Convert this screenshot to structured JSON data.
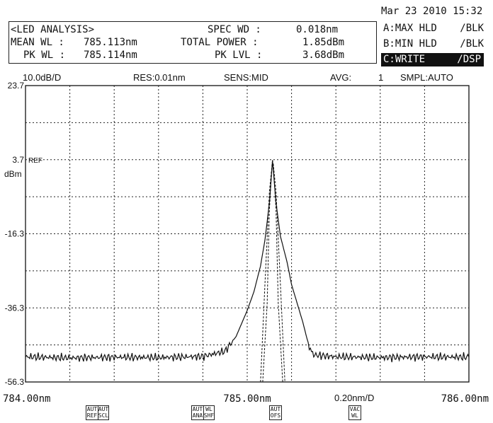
{
  "header": {
    "datetime": "Mar 23 2010 15:32"
  },
  "analysis": {
    "title": "<LED ANALYSIS>",
    "mean_wl_label": "MEAN WL :",
    "mean_wl_value": "785.113nm",
    "pk_wl_label": "PK WL :",
    "pk_wl_value": "785.114nm",
    "spec_wd_label": "SPEC WD :",
    "spec_wd_value": "0.018nm",
    "total_power_label": "TOTAL POWER :",
    "total_power_value": "1.85dBm",
    "pk_lvl_label": "PK LVL :",
    "pk_lvl_value": "3.68dBm"
  },
  "traces": [
    {
      "label": "A:MAX HLD",
      "mode": "/BLK",
      "active": false
    },
    {
      "label": "B:MIN HLD",
      "mode": "/BLK",
      "active": false
    },
    {
      "label": "C:WRITE",
      "mode": "/DSP",
      "active": true
    }
  ],
  "settings": {
    "scale": "10.0dB/D",
    "res": "RES:0.01nm",
    "sens": "SENS:MID",
    "avg_label": "AVG:",
    "avg_value": "1",
    "smpl": "SMPL:AUTO"
  },
  "ref_marker": "REF",
  "y_unit": "dBm",
  "x_span": "0.20nm/D",
  "softkeys": [
    {
      "id": "aut-ref",
      "label": "AUT REF"
    },
    {
      "id": "aut-scl",
      "label": "AUT SCL"
    },
    {
      "id": "aut-ana",
      "label": "AUT ANA"
    },
    {
      "id": "wl-shf",
      "label": "WL SHF"
    },
    {
      "id": "aut-ofs",
      "label": "AUT OFS"
    },
    {
      "id": "vac-wl",
      "label": "VAC WL"
    }
  ],
  "colors": {
    "trace": "#111111",
    "grid": "#222222",
    "background": "#ffffff",
    "active_trace_bg": "#111111"
  },
  "chart_data": {
    "type": "line",
    "title": "",
    "xlabel": "",
    "ylabel": "dBm",
    "xlim": [
      784.0,
      786.0
    ],
    "ylim": [
      -56.3,
      23.7
    ],
    "x_tick_labels": [
      "784.00nm",
      "785.00nm",
      "786.00nm"
    ],
    "y_tick_labels": [
      "23.7",
      "3.7",
      "-16.3",
      "-36.3",
      "-56.3"
    ],
    "y_ticks": [
      23.7,
      3.7,
      -16.3,
      -36.3,
      -56.3
    ],
    "grid": true,
    "series": [
      {
        "x": [
          784.0,
          784.2,
          784.4,
          784.6,
          784.8,
          784.9,
          784.95,
          785.0,
          785.03,
          785.06,
          785.08,
          785.1,
          785.114,
          785.13,
          785.15,
          785.18,
          785.2,
          785.22,
          785.25,
          785.28,
          785.3,
          785.4,
          785.6,
          785.8,
          786.0
        ],
        "y": [
          -49.5,
          -49.8,
          -49.6,
          -49.7,
          -49.4,
          -48.0,
          -44.0,
          -37.0,
          -32.0,
          -25.0,
          -18.0,
          -8.0,
          3.4,
          -8.0,
          -17.0,
          -24.0,
          -30.0,
          -34.0,
          -40.0,
          -47.0,
          -49.0,
          -49.5,
          -49.7,
          -49.5,
          -49.6
        ]
      },
      {
        "x": [
          785.06,
          785.08,
          785.1,
          785.11,
          785.114,
          785.12,
          785.13,
          785.15,
          785.17
        ],
        "y": [
          -70.0,
          -30.0,
          -5.0,
          1.0,
          3.7,
          1.0,
          -5.0,
          -30.0,
          -70.0
        ]
      },
      {
        "x": [
          785.07,
          785.09,
          785.1,
          785.112,
          785.118,
          785.13,
          785.14,
          785.16
        ],
        "y": [
          -70.0,
          -35.0,
          -10.0,
          2.5,
          2.5,
          -10.0,
          -35.0,
          -70.0
        ]
      }
    ]
  }
}
